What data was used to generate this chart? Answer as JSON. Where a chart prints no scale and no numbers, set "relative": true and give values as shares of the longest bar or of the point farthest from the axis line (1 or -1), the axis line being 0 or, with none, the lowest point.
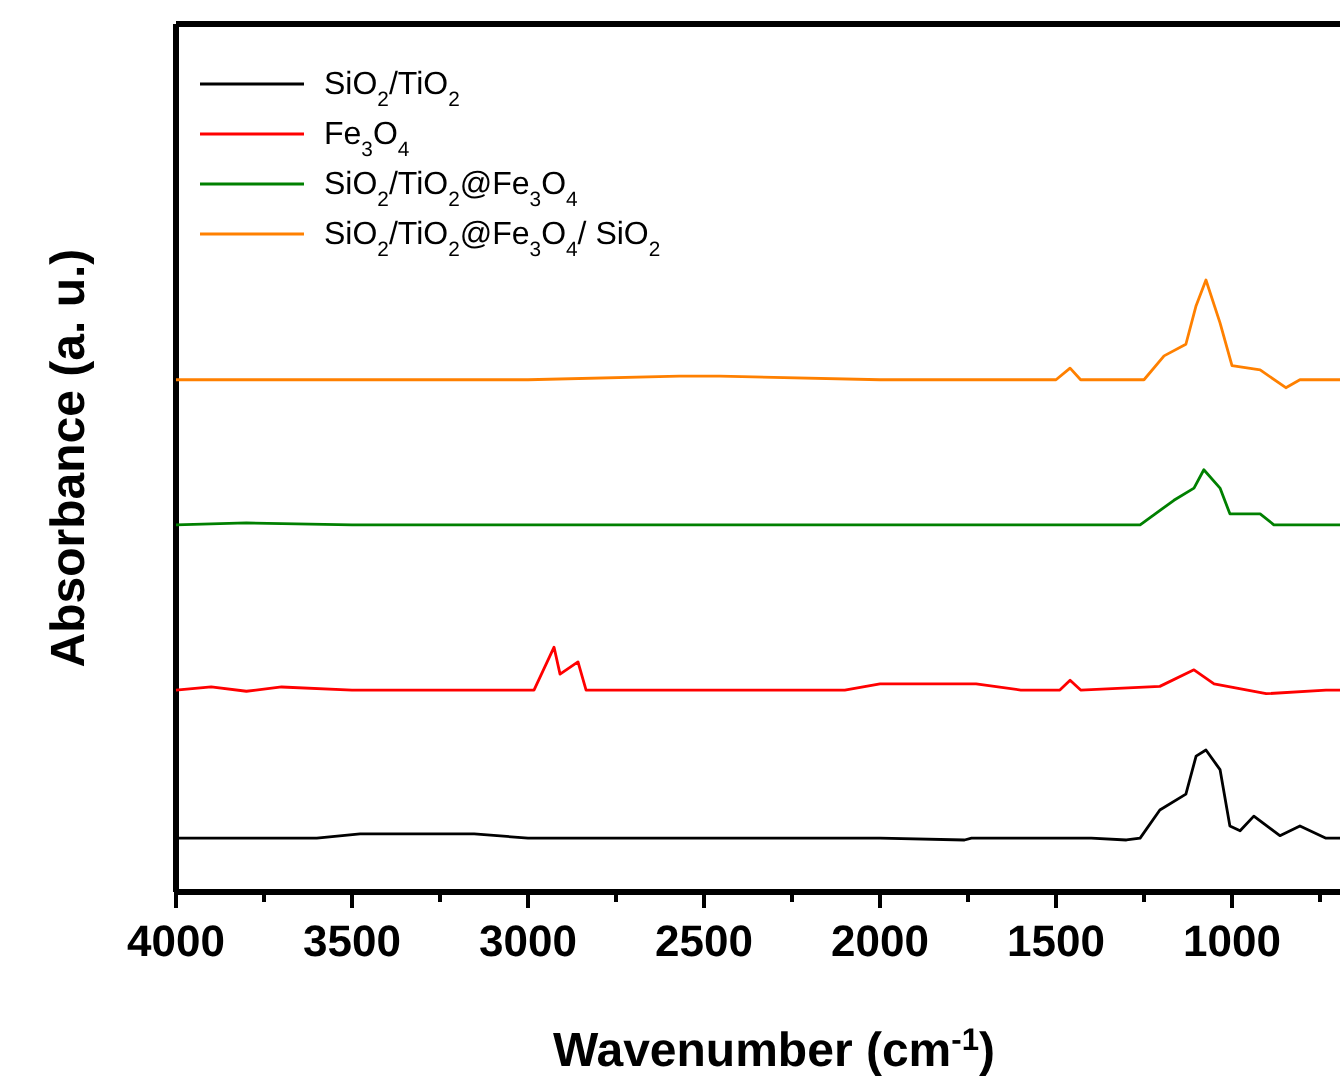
{
  "chart_data": {
    "type": "line",
    "relative": true,
    "xlabel": "Wavenumber (cm$^{-1}$)",
    "ylabel": "Absorbance (a. u.)",
    "xlim": [
      4000,
      690
    ],
    "xticks": [
      4000,
      {
        "value": 3750,
        "label": null
      },
      3500,
      {
        "value": 3250,
        "label": null
      },
      3000,
      {
        "value": 2750,
        "label": null
      },
      2500,
      {
        "value": 2250,
        "label": null
      },
      2000,
      {
        "value": 1750,
        "label": null
      },
      1500,
      {
        "value": 1250,
        "label": null
      },
      1000,
      {
        "value": 750,
        "label": null
      }
    ],
    "legend": "top left",
    "line_style": "solid",
    "tick_labels": "x",
    "series": [
      {
        "name": "SiO$_{2}$/TiO$_{2}$",
        "color": "#000000",
        "x": [
          4000,
          3600,
          3477,
          3300,
          3153,
          3000,
          2500,
          2000,
          1760,
          1740,
          1400,
          1300,
          1261,
          1205,
          1131,
          1102,
          1074,
          1034,
          1006,
          977,
          938,
          864,
          807,
          733,
          690
        ],
        "values": [
          0.088,
          0.088,
          0.095,
          0.095,
          0.095,
          0.088,
          0.088,
          0.088,
          0.085,
          0.088,
          0.088,
          0.085,
          0.088,
          0.134,
          0.16,
          0.222,
          0.232,
          0.2,
          0.108,
          0.1,
          0.124,
          0.092,
          0.108,
          0.088,
          0.088
        ]
      },
      {
        "name": "Fe$_{3}$O$_{4}$",
        "color": "#ff0000",
        "x": [
          4000,
          3900,
          3800,
          3700,
          3500,
          3000,
          2983,
          2926,
          2909,
          2858,
          2835,
          2500,
          2100,
          2000,
          1727,
          1600,
          1489,
          1460,
          1430,
          1205,
          1108,
          1051,
          903,
          733,
          690
        ],
        "values": [
          0.33,
          0.335,
          0.328,
          0.335,
          0.33,
          0.33,
          0.33,
          0.4,
          0.356,
          0.376,
          0.33,
          0.33,
          0.33,
          0.34,
          0.34,
          0.33,
          0.33,
          0.346,
          0.33,
          0.336,
          0.363,
          0.34,
          0.324,
          0.33,
          0.33
        ]
      },
      {
        "name": "SiO$_{2}$/TiO$_{2}$@Fe$_{3}$O$_{4}$",
        "color": "#008000",
        "x": [
          4000,
          3800,
          3500,
          3000,
          2500,
          2000,
          1500,
          1261,
          1165,
          1108,
          1080,
          1034,
          1006,
          920,
          881,
          690
        ],
        "values": [
          0.6,
          0.603,
          0.6,
          0.6,
          0.6,
          0.6,
          0.6,
          0.6,
          0.64,
          0.66,
          0.69,
          0.66,
          0.618,
          0.618,
          0.6,
          0.6
        ]
      },
      {
        "name": "SiO$_{2}$/TiO$_{2}$@Fe$_{3}$O$_{4}$/ SiO$_{2}$",
        "color": "#ff8000",
        "x": [
          4000,
          3500,
          3000,
          2570,
          2455,
          2000,
          1500,
          1460,
          1430,
          1250,
          1193,
          1131,
          1102,
          1074,
          1034,
          1000,
          920,
          847,
          807,
          690
        ],
        "values": [
          0.837,
          0.837,
          0.837,
          0.843,
          0.843,
          0.837,
          0.837,
          0.856,
          0.837,
          0.837,
          0.876,
          0.895,
          0.958,
          1.0,
          0.93,
          0.86,
          0.853,
          0.824,
          0.837,
          0.837
        ]
      }
    ]
  }
}
